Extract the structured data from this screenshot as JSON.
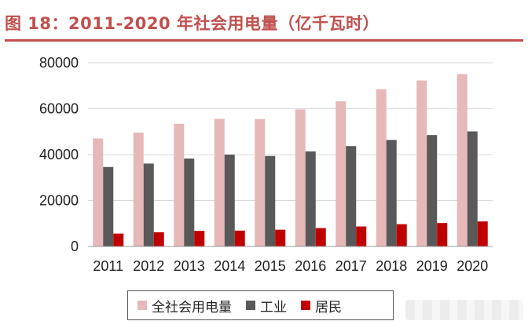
{
  "title": "图 18：2011-2020 年社会用电量（亿千瓦时）",
  "chart_data": {
    "type": "bar",
    "title": "图 18：2011-2020 年社会用电量（亿千瓦时）",
    "categories": [
      "2011",
      "2012",
      "2013",
      "2014",
      "2015",
      "2016",
      "2017",
      "2018",
      "2019",
      "2020"
    ],
    "series": [
      {
        "name": "全社会用电量",
        "color": "#e6b8b7",
        "values": [
          47000,
          49600,
          53400,
          55600,
          55500,
          59700,
          63200,
          68500,
          72300,
          75100
        ]
      },
      {
        "name": "工业",
        "color": "#595959",
        "values": [
          34600,
          36100,
          38300,
          40000,
          39400,
          41400,
          43700,
          46400,
          48500,
          50100
        ]
      },
      {
        "name": "居民",
        "color": "#c00000",
        "values": [
          5600,
          6200,
          6800,
          6900,
          7300,
          8000,
          8700,
          9700,
          10200,
          10900
        ]
      }
    ],
    "ylim": [
      0,
      80000
    ],
    "yticks": [
      0,
      20000,
      40000,
      60000,
      80000
    ],
    "grid": true,
    "legend_position": "bottom"
  }
}
